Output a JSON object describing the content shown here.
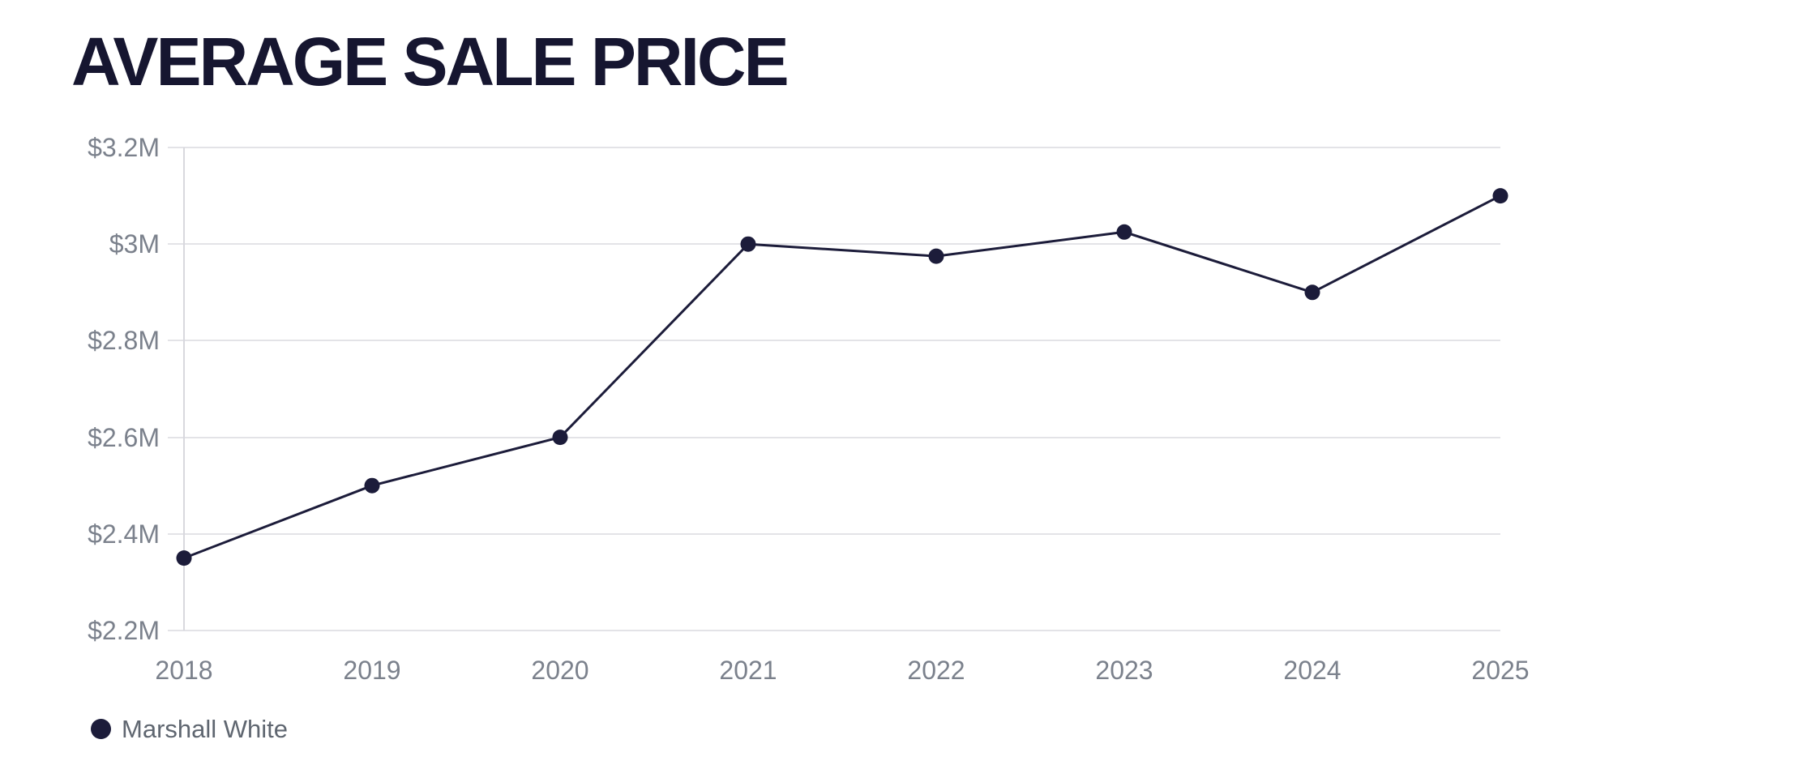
{
  "header": {
    "title": "AVERAGE SALE PRICE"
  },
  "legend": {
    "position": "bottom-left",
    "items": [
      {
        "label": "Marshall White",
        "marker": "filled-circle",
        "color": "#1c1c3a"
      }
    ]
  },
  "colors": {
    "background": "#ffffff",
    "title": "#161630",
    "series": "#1c1c3a",
    "gridline": "#e3e3e7",
    "axis_line": "#d8d8de",
    "axis_label": "#7b818c",
    "legend_label": "#5f6670"
  },
  "chart_data": {
    "type": "line",
    "title": "AVERAGE SALE PRICE",
    "x": [
      "2018",
      "2019",
      "2020",
      "2021",
      "2022",
      "2023",
      "2024",
      "2025"
    ],
    "series": [
      {
        "name": "Marshall White",
        "color": "#1c1c3a",
        "marker": "filled-circle",
        "values_millions_usd": [
          2.35,
          2.5,
          2.6,
          3.0,
          2.975,
          3.025,
          2.9,
          3.1
        ]
      }
    ],
    "y_axis": {
      "unit": "USD millions",
      "min": 2.2,
      "max": 3.2,
      "tick_step": 0.2,
      "tick_labels_ascending": [
        "$2.2M",
        "$2.4M",
        "$2.6M",
        "$2.8M",
        "$3M",
        "$3.2M"
      ]
    },
    "x_axis": {
      "tick_labels": [
        "2018",
        "2019",
        "2020",
        "2021",
        "2022",
        "2023",
        "2024",
        "2025"
      ]
    },
    "grid": "horizontal-only",
    "legend_position": "bottom-left"
  }
}
